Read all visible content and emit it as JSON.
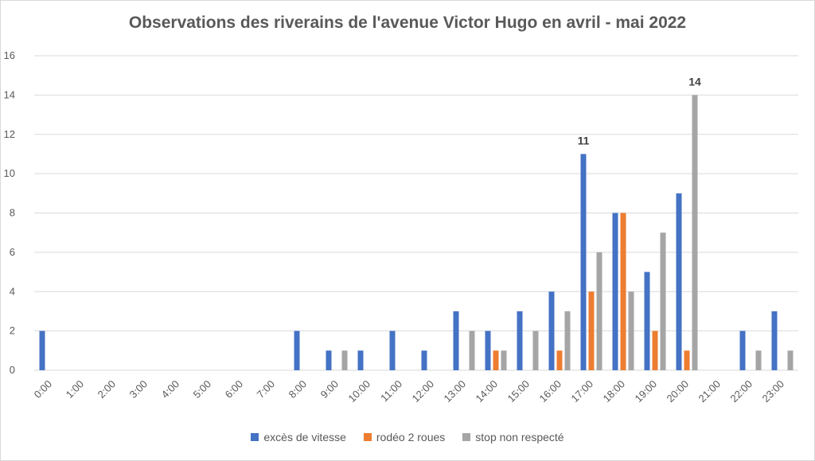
{
  "chart_data": {
    "type": "bar",
    "title": "Observations des riverains de l'avenue Victor Hugo en avril - mai 2022",
    "categories": [
      "0:00",
      "1:00",
      "2:00",
      "3:00",
      "4:00",
      "5:00",
      "6:00",
      "7:00",
      "8:00",
      "9:00",
      "10:00",
      "11:00",
      "12:00",
      "13:00",
      "14:00",
      "15:00",
      "16:00",
      "17:00",
      "18:00",
      "19:00",
      "20:00",
      "21:00",
      "22:00",
      "23:00"
    ],
    "series": [
      {
        "name": "excès de vitesse",
        "color": "#4472c4",
        "values": [
          2,
          0,
          0,
          0,
          0,
          0,
          0,
          0,
          2,
          1,
          1,
          2,
          1,
          3,
          2,
          3,
          4,
          11,
          8,
          5,
          9,
          0,
          2,
          3
        ]
      },
      {
        "name": "rodéo 2 roues",
        "color": "#ed7d31",
        "values": [
          0,
          0,
          0,
          0,
          0,
          0,
          0,
          0,
          0,
          0,
          0,
          0,
          0,
          0,
          1,
          0,
          1,
          4,
          8,
          2,
          1,
          0,
          0,
          0
        ]
      },
      {
        "name": "stop non respecté",
        "color": "#a5a5a5",
        "values": [
          0,
          0,
          0,
          0,
          0,
          0,
          0,
          0,
          0,
          1,
          0,
          0,
          0,
          2,
          1,
          2,
          3,
          6,
          4,
          7,
          14,
          0,
          1,
          1
        ]
      }
    ],
    "data_labels": [
      {
        "category": "17:00",
        "series": "excès de vitesse",
        "text": "11"
      },
      {
        "category": "20:00",
        "series": "stop non respecté",
        "text": "14"
      }
    ],
    "ylim": [
      0,
      16
    ],
    "yticks": [
      0,
      2,
      4,
      6,
      8,
      10,
      12,
      14,
      16
    ],
    "grid": true,
    "legend": "bottom"
  }
}
